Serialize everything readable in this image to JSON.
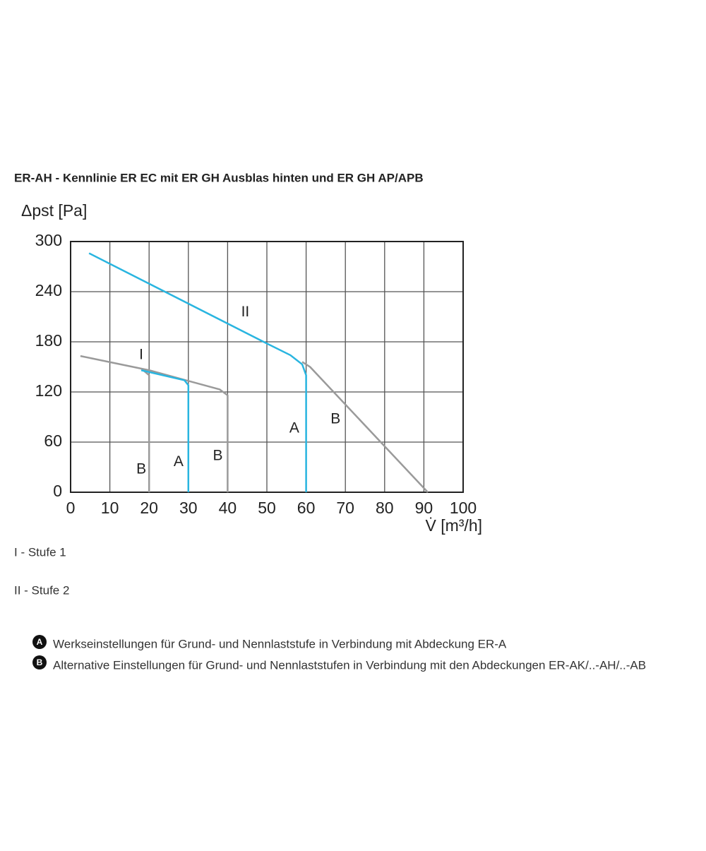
{
  "chart_data": {
    "type": "line",
    "title": "ER-AH - Kennlinie ER EC mit ER GH Ausblas hinten und ER GH AP/APB",
    "ylabel": "Δpst [Pa]",
    "xlabel": "V̇ [m³/h]",
    "xlim": [
      0,
      100
    ],
    "xticks": [
      0,
      10,
      20,
      30,
      40,
      50,
      60,
      70,
      80,
      90,
      100
    ],
    "ylim": [
      0,
      300
    ],
    "yticks": [
      0,
      60,
      120,
      180,
      240,
      300
    ],
    "grid": true,
    "series": [
      {
        "color": "#9a9a9a",
        "x": [
          2.5,
          20,
          38,
          40,
          40
        ],
        "values": [
          163,
          146,
          123,
          116,
          0
        ]
      },
      {
        "color": "#9a9a9a",
        "x": [
          18,
          20,
          20
        ],
        "values": [
          148,
          140,
          0
        ]
      },
      {
        "color": "#9a9a9a",
        "x": [
          59,
          61,
          91
        ],
        "values": [
          156,
          150,
          0
        ]
      },
      {
        "color": "#29b5e0",
        "x": [
          18,
          29,
          30,
          30
        ],
        "values": [
          146,
          134,
          128,
          0
        ]
      },
      {
        "color": "#29b5e0",
        "x": [
          4.7,
          50,
          56,
          59,
          60,
          60
        ],
        "values": [
          286,
          178,
          164,
          153,
          140,
          0
        ]
      }
    ],
    "annotations": [
      {
        "text": "II",
        "x": 44.5,
        "y": 215
      },
      {
        "text": "I",
        "x": 18,
        "y": 164
      },
      {
        "text": "B",
        "x": 18,
        "y": 27
      },
      {
        "text": "A",
        "x": 27.5,
        "y": 36
      },
      {
        "text": "B",
        "x": 37.5,
        "y": 43
      },
      {
        "text": "A",
        "x": 57,
        "y": 76
      },
      {
        "text": "B",
        "x": 67.5,
        "y": 87
      }
    ]
  },
  "stages": [
    "I - Stufe 1",
    "II - Stufe 2"
  ],
  "notes": [
    {
      "badge": "A",
      "text": "Werkseinstellungen für Grund- und Nennlaststufe in Verbindung mit Abdeckung ER-A"
    },
    {
      "badge": "B",
      "text": "Alternative Einstellungen für Grund- und Nennlaststufen in Verbindung mit den Abdeckungen ER-AK/..-AH/..-AB"
    }
  ]
}
